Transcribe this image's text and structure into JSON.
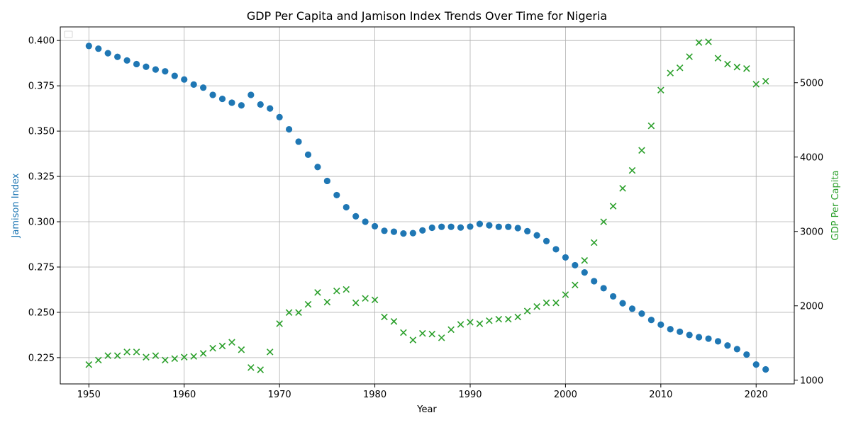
{
  "chart_data": {
    "type": "scatter",
    "title": "GDP Per Capita and Jamison Index Trends Over Time for Nigeria",
    "xlabel": "Year",
    "ylabel_left": "Jamison Index",
    "ylabel_right": "GDP Per Capita",
    "xlim": [
      1947,
      2024
    ],
    "ylim_left": [
      0.2105,
      0.4075
    ],
    "ylim_right": [
      950,
      5750
    ],
    "x_ticks": [
      1950,
      1960,
      1970,
      1980,
      1990,
      2000,
      2010,
      2020
    ],
    "y_left_ticks": [
      "0.225",
      "0.250",
      "0.275",
      "0.300",
      "0.325",
      "0.350",
      "0.375",
      "0.400"
    ],
    "y_right_ticks": [
      "1000",
      "2000",
      "3000",
      "4000",
      "5000"
    ],
    "grid": true,
    "legend": "upper-left (empty)",
    "colors": {
      "jamison": "#1f77b4",
      "gdp": "#2ca02c"
    },
    "series": [
      {
        "axis": "left",
        "marker": "circle",
        "color": "#1f77b4",
        "x": [
          1950,
          1951,
          1952,
          1953,
          1954,
          1955,
          1956,
          1957,
          1958,
          1959,
          1960,
          1961,
          1962,
          1963,
          1964,
          1965,
          1966,
          1967,
          1968,
          1969,
          1970,
          1971,
          1972,
          1973,
          1974,
          1975,
          1976,
          1977,
          1978,
          1979,
          1980,
          1981,
          1982,
          1983,
          1984,
          1985,
          1986,
          1987,
          1988,
          1989,
          1990,
          1991,
          1992,
          1993,
          1994,
          1995,
          1996,
          1997,
          1998,
          1999,
          2000,
          2001,
          2002,
          2003,
          2004,
          2005,
          2006,
          2007,
          2008,
          2009,
          2010,
          2011,
          2012,
          2013,
          2014,
          2015,
          2016,
          2017,
          2018,
          2019,
          2020,
          2021
        ],
        "values": [
          0.397,
          0.3955,
          0.393,
          0.391,
          0.389,
          0.387,
          0.3855,
          0.384,
          0.383,
          0.3805,
          0.3785,
          0.3757,
          0.374,
          0.37,
          0.3678,
          0.3657,
          0.3642,
          0.37,
          0.3647,
          0.3625,
          0.3577,
          0.351,
          0.3442,
          0.337,
          0.3302,
          0.3225,
          0.3147,
          0.308,
          0.303,
          0.3,
          0.2975,
          0.295,
          0.2945,
          0.2935,
          0.2937,
          0.2952,
          0.2967,
          0.2972,
          0.2972,
          0.2968,
          0.2973,
          0.2988,
          0.298,
          0.2972,
          0.2972,
          0.2965,
          0.2948,
          0.2925,
          0.2893,
          0.2848,
          0.2803,
          0.276,
          0.272,
          0.2672,
          0.2633,
          0.2588,
          0.255,
          0.252,
          0.2493,
          0.2458,
          0.2432,
          0.2407,
          0.2393,
          0.2375,
          0.2363,
          0.2355,
          0.234,
          0.2317,
          0.2297,
          0.2267,
          0.2212,
          0.2185
        ]
      },
      {
        "axis": "right",
        "marker": "x",
        "color": "#2ca02c",
        "x": [
          1950,
          1951,
          1952,
          1953,
          1954,
          1955,
          1956,
          1957,
          1958,
          1959,
          1960,
          1961,
          1962,
          1963,
          1964,
          1965,
          1966,
          1967,
          1968,
          1969,
          1970,
          1971,
          1972,
          1973,
          1974,
          1975,
          1976,
          1977,
          1978,
          1979,
          1980,
          1981,
          1982,
          1983,
          1984,
          1985,
          1986,
          1987,
          1988,
          1989,
          1990,
          1991,
          1992,
          1993,
          1994,
          1995,
          1996,
          1997,
          1998,
          1999,
          2000,
          2001,
          2002,
          2003,
          2004,
          2005,
          2006,
          2007,
          2008,
          2009,
          2010,
          2011,
          2012,
          2013,
          2014,
          2015,
          2016,
          2017,
          2018,
          2019,
          2020,
          2021
        ],
        "values": [
          1210,
          1270,
          1330,
          1330,
          1380,
          1380,
          1310,
          1330,
          1270,
          1290,
          1310,
          1320,
          1360,
          1430,
          1460,
          1510,
          1410,
          1170,
          1140,
          1380,
          1760,
          1910,
          1910,
          2020,
          2180,
          2050,
          2200,
          2220,
          2040,
          2100,
          2080,
          1850,
          1790,
          1640,
          1540,
          1630,
          1620,
          1570,
          1680,
          1750,
          1780,
          1760,
          1800,
          1820,
          1820,
          1850,
          1930,
          1990,
          2040,
          2040,
          2150,
          2280,
          2610,
          2850,
          3130,
          3340,
          3580,
          3820,
          4090,
          4420,
          4900,
          5130,
          5200,
          5350,
          5540,
          5550,
          5330,
          5250,
          5210,
          5190,
          4980,
          5020
        ]
      }
    ]
  }
}
